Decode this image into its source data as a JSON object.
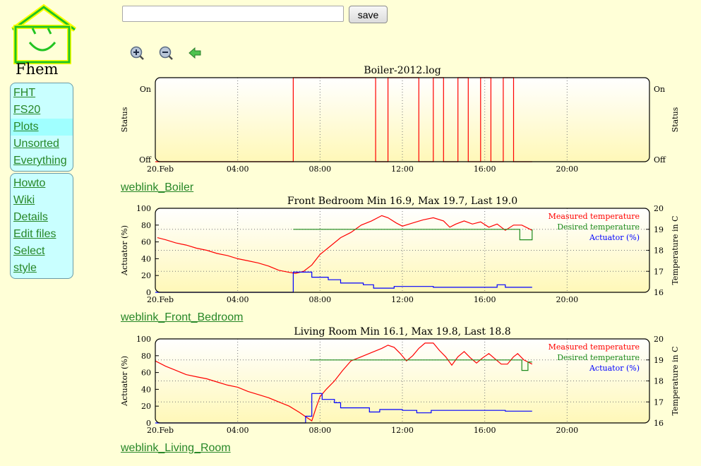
{
  "app": {
    "logo_text": "Fhem"
  },
  "menu": {
    "primary": [
      "FHT",
      "FS20",
      "Plots",
      "Unsorted",
      "Everything"
    ],
    "secondary": [
      "Howto",
      "Wiki",
      "Details",
      "Edit files",
      "Select style"
    ],
    "selected": "Plots"
  },
  "toolbar": {
    "input_value": "",
    "save_label": "save"
  },
  "tools": [
    "zoom-in-icon",
    "zoom-out-icon",
    "back-arrow-icon"
  ],
  "colors": {
    "measured": "#ff0000",
    "desired": "#1c8a1c",
    "actuator": "#0000ff",
    "link": "#278727"
  },
  "weblinks": [
    "weblink_Boiler",
    "weblink_Front_Bedroom",
    "weblink_Living_Room"
  ],
  "chart_data": [
    {
      "type": "line",
      "title": "Boiler-2012.log",
      "ylabel": "Status",
      "y2label": "Status",
      "y_ticks": [
        "Off",
        "On"
      ],
      "y2_ticks": [
        "Off",
        "On"
      ],
      "x_ticks": [
        "20.Feb",
        "04:00",
        "08:00",
        "12:00",
        "16:00",
        "20:00"
      ],
      "xlim": [
        0,
        24
      ],
      "ylim": [
        0,
        1
      ],
      "grid": true,
      "series": [
        {
          "color": "#ff0000",
          "points": [
            [
              0,
              0
            ],
            [
              6.7,
              0
            ],
            [
              6.7,
              1
            ],
            [
              10.7,
              1
            ],
            [
              10.7,
              0
            ],
            [
              11.3,
              0
            ],
            [
              11.3,
              1
            ],
            [
              12.8,
              1
            ],
            [
              12.8,
              0
            ],
            [
              13.5,
              0
            ],
            [
              13.5,
              1
            ],
            [
              14.0,
              1
            ],
            [
              14.0,
              0
            ],
            [
              14.7,
              0
            ],
            [
              14.7,
              1
            ],
            [
              15.2,
              1
            ],
            [
              15.2,
              0
            ],
            [
              15.8,
              0
            ],
            [
              15.8,
              1
            ],
            [
              16.3,
              1
            ],
            [
              16.3,
              0
            ],
            [
              16.9,
              0
            ],
            [
              16.9,
              1
            ],
            [
              17.4,
              1
            ],
            [
              17.4,
              0
            ],
            [
              18.3,
              0
            ]
          ]
        }
      ]
    },
    {
      "type": "line",
      "title": "Front Bedroom Min 16.9, Max 19.7, Last 19.0",
      "ylabel": "Actuator (%)",
      "y2label": "Temperature in C",
      "y_ticks": [
        0,
        20,
        40,
        60,
        80,
        100
      ],
      "y2_ticks": [
        16,
        17,
        18,
        19,
        20
      ],
      "x_ticks": [
        "20.Feb",
        "04:00",
        "08:00",
        "12:00",
        "16:00",
        "20:00"
      ],
      "xlim": [
        0,
        24
      ],
      "ylim": [
        0,
        100
      ],
      "y2lim": [
        16,
        20
      ],
      "grid": true,
      "legend": [
        "Measured temperature",
        "Desired temperature",
        "Actuator (%)"
      ],
      "series": [
        {
          "name": "Measured temperature",
          "color": "#ff0000",
          "axis": "y2",
          "points": [
            [
              0.1,
              18.6
            ],
            [
              0.5,
              18.5
            ],
            [
              1,
              18.35
            ],
            [
              1.5,
              18.25
            ],
            [
              2,
              18.1
            ],
            [
              2.5,
              18.0
            ],
            [
              3,
              17.85
            ],
            [
              3.5,
              17.75
            ],
            [
              4,
              17.6
            ],
            [
              4.5,
              17.5
            ],
            [
              5,
              17.4
            ],
            [
              5.5,
              17.25
            ],
            [
              6,
              17.05
            ],
            [
              6.5,
              16.95
            ],
            [
              6.8,
              16.9
            ],
            [
              7.2,
              17.0
            ],
            [
              7.6,
              17.3
            ],
            [
              8.0,
              17.8
            ],
            [
              8.5,
              18.2
            ],
            [
              9,
              18.6
            ],
            [
              9.5,
              18.85
            ],
            [
              10,
              19.2
            ],
            [
              10.5,
              19.4
            ],
            [
              11,
              19.65
            ],
            [
              11.3,
              19.55
            ],
            [
              11.7,
              19.3
            ],
            [
              12,
              19.15
            ],
            [
              12.5,
              19.3
            ],
            [
              13,
              19.45
            ],
            [
              13.5,
              19.55
            ],
            [
              14,
              19.4
            ],
            [
              14.3,
              19.1
            ],
            [
              14.6,
              19.25
            ],
            [
              15,
              19.4
            ],
            [
              15.4,
              19.25
            ],
            [
              15.8,
              19.35
            ],
            [
              16.2,
              19.1
            ],
            [
              16.6,
              19.25
            ],
            [
              17,
              18.95
            ],
            [
              17.4,
              19.2
            ],
            [
              17.8,
              19.2
            ],
            [
              18.3,
              18.95
            ]
          ]
        },
        {
          "name": "Desired temperature",
          "color": "#1c8a1c",
          "axis": "y2",
          "points": [
            [
              6.7,
              19.0
            ],
            [
              17.7,
              19.0
            ],
            [
              17.7,
              18.5
            ],
            [
              18.3,
              18.5
            ],
            [
              18.3,
              19.0
            ]
          ]
        },
        {
          "name": "Actuator (%)",
          "color": "#0000ff",
          "axis": "y",
          "points": [
            [
              0,
              0
            ],
            [
              6.7,
              0
            ],
            [
              6.7,
              24
            ],
            [
              7.6,
              24
            ],
            [
              7.6,
              18
            ],
            [
              8.4,
              18
            ],
            [
              8.4,
              15
            ],
            [
              9.0,
              15
            ],
            [
              9.0,
              11
            ],
            [
              10.1,
              11
            ],
            [
              10.1,
              9
            ],
            [
              10.6,
              9
            ],
            [
              10.6,
              5
            ],
            [
              11.6,
              5
            ],
            [
              11.6,
              7
            ],
            [
              13.5,
              7
            ],
            [
              13.5,
              6
            ],
            [
              16.6,
              6
            ],
            [
              16.6,
              9
            ],
            [
              17.0,
              9
            ],
            [
              17.0,
              6
            ],
            [
              18.3,
              6
            ]
          ]
        }
      ]
    },
    {
      "type": "line",
      "title": "Living Room Min 16.1, Max 19.8, Last 18.8",
      "ylabel": "Actuator (%)",
      "y2label": "Temperature in C",
      "y_ticks": [
        0,
        20,
        40,
        60,
        80,
        100
      ],
      "y2_ticks": [
        16,
        17,
        18,
        19,
        20
      ],
      "x_ticks": [
        "20.Feb",
        "04:00",
        "08:00",
        "12:00",
        "16:00",
        "20:00"
      ],
      "xlim": [
        0,
        24
      ],
      "ylim": [
        0,
        100
      ],
      "y2lim": [
        16,
        20
      ],
      "grid": true,
      "legend": [
        "Measured temperature",
        "Desired temperature",
        "Actuator (%)"
      ],
      "series": [
        {
          "name": "Measured temperature",
          "color": "#ff0000",
          "axis": "y2",
          "points": [
            [
              0,
              18.95
            ],
            [
              0.5,
              18.7
            ],
            [
              1,
              18.5
            ],
            [
              1.5,
              18.3
            ],
            [
              2,
              18.2
            ],
            [
              2.5,
              18.1
            ],
            [
              3,
              17.95
            ],
            [
              3.5,
              17.8
            ],
            [
              4,
              17.7
            ],
            [
              4.5,
              17.5
            ],
            [
              5,
              17.35
            ],
            [
              5.5,
              17.2
            ],
            [
              6,
              17.0
            ],
            [
              6.5,
              16.8
            ],
            [
              7.0,
              16.5
            ],
            [
              7.3,
              16.3
            ],
            [
              7.6,
              16.1
            ],
            [
              7.8,
              16.7
            ],
            [
              8.0,
              17.25
            ],
            [
              8.3,
              17.6
            ],
            [
              8.7,
              18.0
            ],
            [
              9.1,
              18.5
            ],
            [
              9.5,
              18.95
            ],
            [
              10.0,
              19.15
            ],
            [
              10.5,
              19.35
            ],
            [
              11,
              19.55
            ],
            [
              11.3,
              19.7
            ],
            [
              11.6,
              19.6
            ],
            [
              11.9,
              19.3
            ],
            [
              12.2,
              18.95
            ],
            [
              12.5,
              19.2
            ],
            [
              12.8,
              19.55
            ],
            [
              13.1,
              19.8
            ],
            [
              13.5,
              19.8
            ],
            [
              13.8,
              19.45
            ],
            [
              14.1,
              19.15
            ],
            [
              14.4,
              18.75
            ],
            [
              14.7,
              19.15
            ],
            [
              15.0,
              19.4
            ],
            [
              15.3,
              19.1
            ],
            [
              15.6,
              18.85
            ],
            [
              15.9,
              19.1
            ],
            [
              16.2,
              19.3
            ],
            [
              16.5,
              19.05
            ],
            [
              16.8,
              18.8
            ],
            [
              17.1,
              18.8
            ],
            [
              17.4,
              19.15
            ],
            [
              17.6,
              19.3
            ],
            [
              17.9,
              19.0
            ],
            [
              18.1,
              18.9
            ],
            [
              18.3,
              18.8
            ]
          ]
        },
        {
          "name": "Desired temperature",
          "color": "#1c8a1c",
          "axis": "y2",
          "points": [
            [
              7.5,
              19.0
            ],
            [
              17.8,
              19.0
            ],
            [
              17.8,
              18.5
            ],
            [
              18.1,
              18.5
            ],
            [
              18.1,
              18.9
            ],
            [
              18.3,
              18.9
            ]
          ]
        },
        {
          "name": "Actuator (%)",
          "color": "#0000ff",
          "axis": "y",
          "points": [
            [
              0,
              0
            ],
            [
              7.3,
              0
            ],
            [
              7.3,
              8
            ],
            [
              7.6,
              8
            ],
            [
              7.6,
              35
            ],
            [
              8.1,
              35
            ],
            [
              8.1,
              28
            ],
            [
              8.7,
              28
            ],
            [
              8.7,
              24
            ],
            [
              9.0,
              24
            ],
            [
              9.0,
              18
            ],
            [
              10.4,
              18
            ],
            [
              10.4,
              13
            ],
            [
              10.9,
              13
            ],
            [
              10.9,
              16
            ],
            [
              12.0,
              16
            ],
            [
              12.0,
              15
            ],
            [
              12.7,
              15
            ],
            [
              12.7,
              12
            ],
            [
              13.4,
              12
            ],
            [
              13.4,
              15
            ],
            [
              17.0,
              15
            ],
            [
              17.0,
              14
            ],
            [
              18.3,
              14
            ]
          ]
        }
      ]
    }
  ]
}
